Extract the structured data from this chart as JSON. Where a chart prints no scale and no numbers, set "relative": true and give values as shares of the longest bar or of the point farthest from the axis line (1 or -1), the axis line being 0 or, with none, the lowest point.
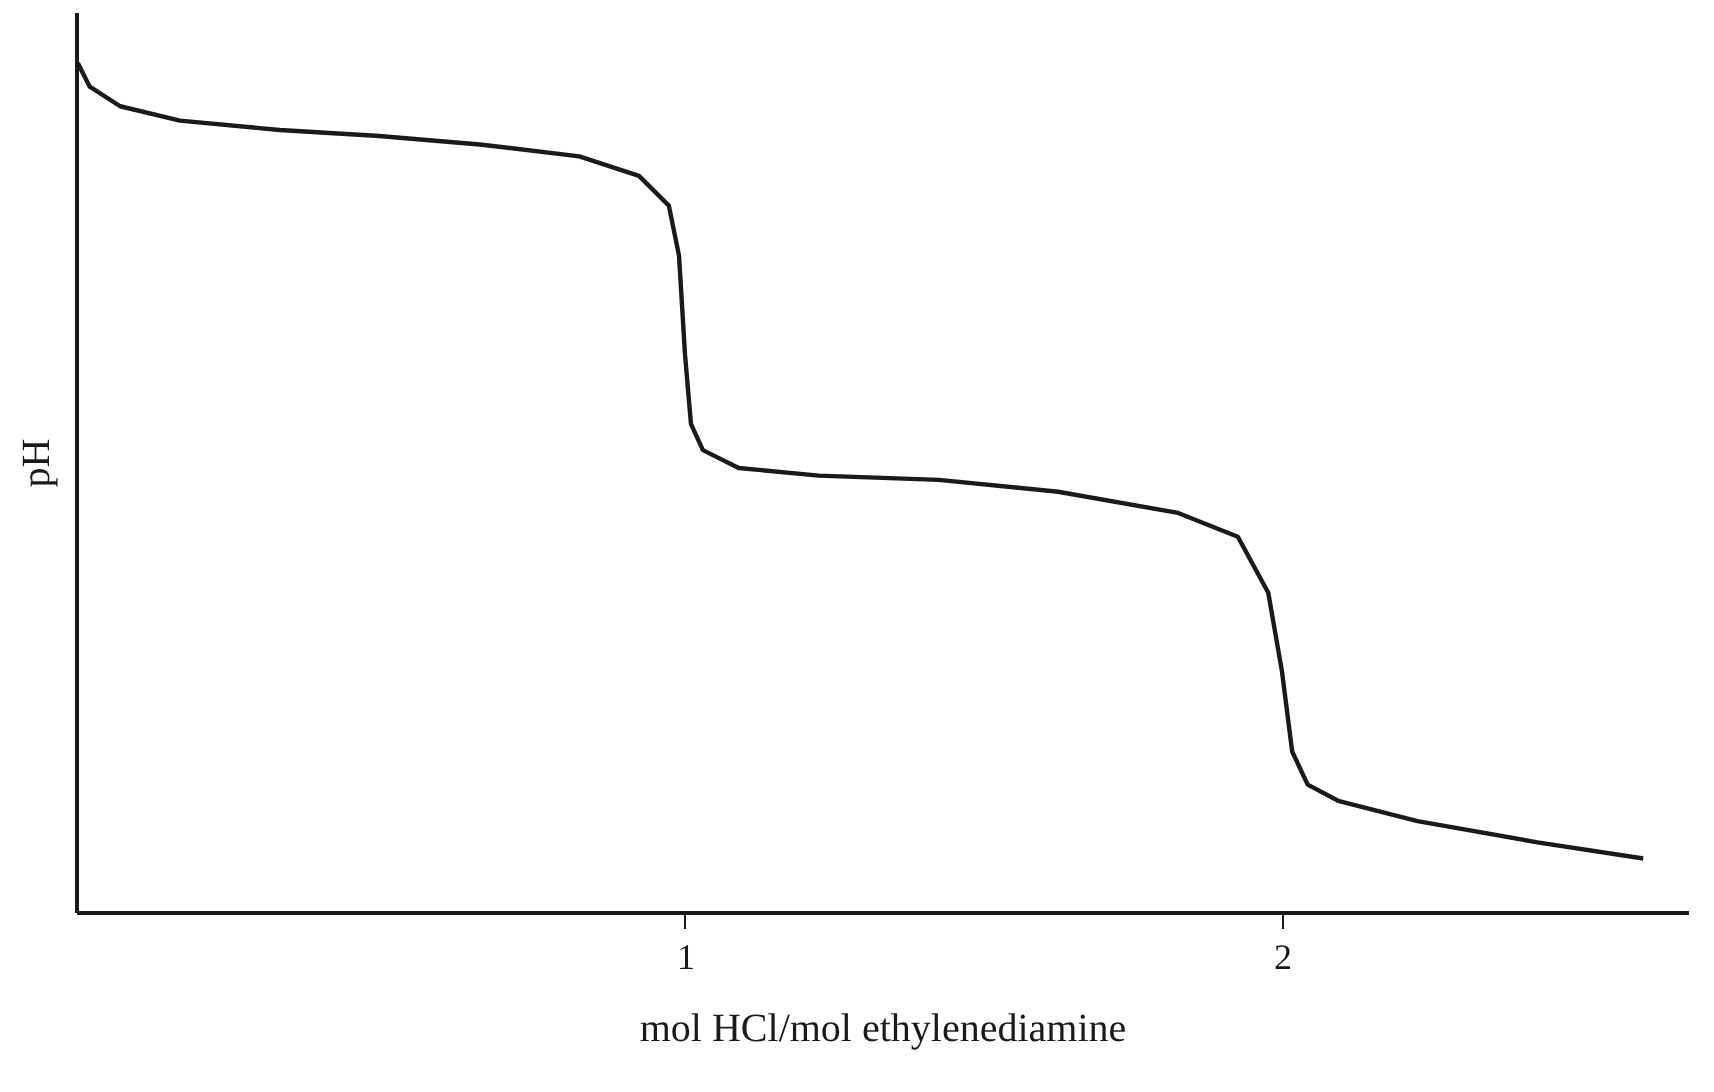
{
  "chart_data": {
    "type": "line",
    "relative": true,
    "xlabel": "mol  HCl/mol  ethylenediamine",
    "ylabel": "pH",
    "xlim": [
      -0.02,
      2.68
    ],
    "xticks": [
      1,
      2
    ],
    "grid": false,
    "line_style": "solid",
    "marker": "none",
    "series": [
      {
        "color": "#1a1a1a",
        "x": [
          -0.017,
          0.003,
          0.054,
          0.154,
          0.321,
          0.488,
          0.656,
          0.823,
          0.923,
          0.973,
          0.99,
          1.0,
          1.01,
          1.03,
          1.09,
          1.224,
          1.425,
          1.625,
          1.826,
          1.926,
          1.977,
          2.0,
          2.017,
          2.043,
          2.094,
          2.227,
          2.428,
          2.605
        ],
        "values": [
          1.0,
          0.972,
          0.949,
          0.932,
          0.921,
          0.914,
          0.904,
          0.89,
          0.867,
          0.832,
          0.773,
          0.657,
          0.575,
          0.544,
          0.523,
          0.514,
          0.509,
          0.495,
          0.47,
          0.442,
          0.376,
          0.283,
          0.189,
          0.15,
          0.131,
          0.107,
          0.082,
          0.063
        ]
      }
    ]
  }
}
